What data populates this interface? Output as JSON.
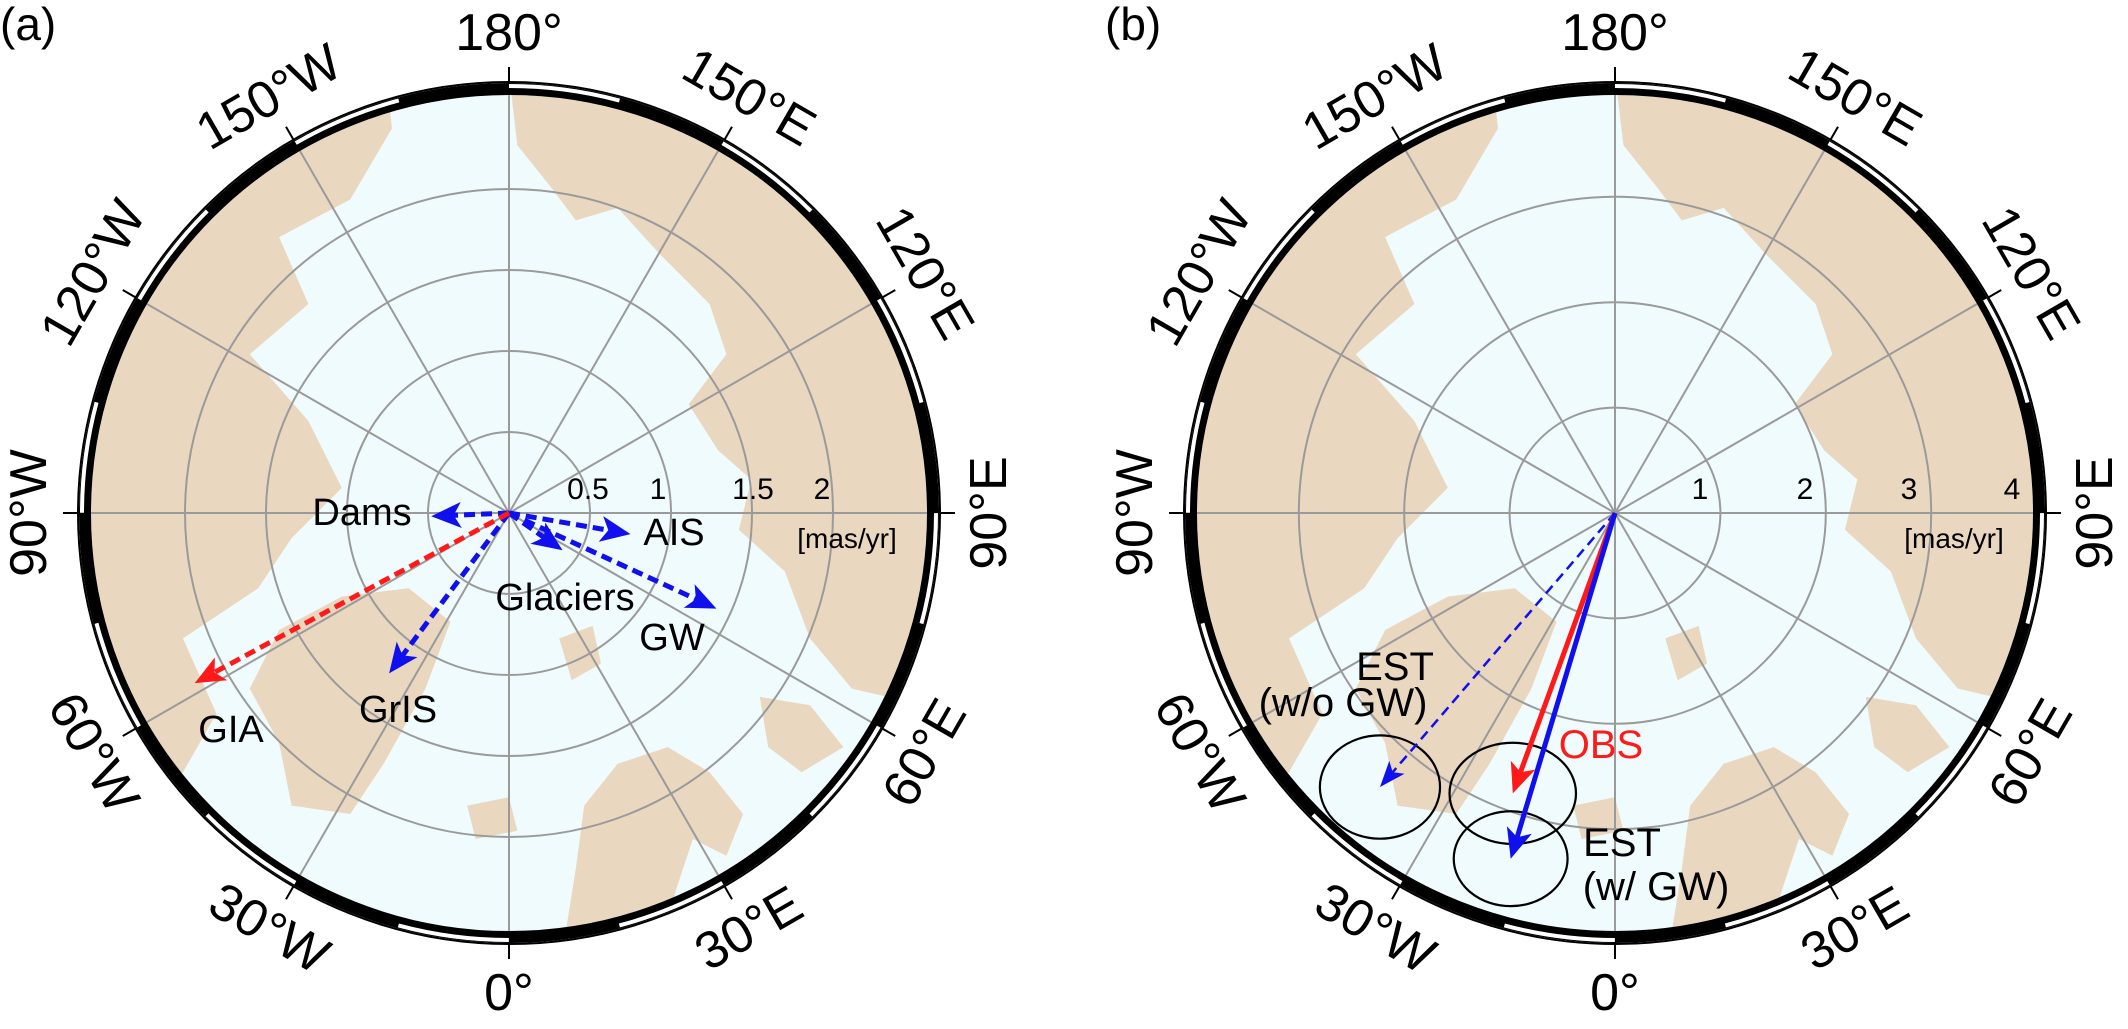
{
  "colors": {
    "ocean": "#effbfc",
    "land": "#ead7c0",
    "grid": "#9a9a9a",
    "red": "#ff1a1a",
    "blue": "#1010ee",
    "frame": "#000000"
  },
  "chart_data": [
    {
      "type": "vector",
      "panel_label": "(a)",
      "projection": "north polar stereographic",
      "meridian_labels": [
        "180°",
        "150°E",
        "120°E",
        "90°E",
        "60°E",
        "30°E",
        "0°",
        "30°W",
        "60°W",
        "90°W",
        "120°W",
        "150°W"
      ],
      "ring_values": [
        0.5,
        1,
        1.5,
        2
      ],
      "ring_labels": [
        "0.5",
        "1",
        "1.5",
        "2"
      ],
      "unit": "[mas/yr]",
      "rlim": [
        0,
        2.55
      ],
      "vectors": [
        {
          "name": "Dams",
          "dx": -0.48,
          "dy": -0.02,
          "color": "#1010ee",
          "style": "dashed"
        },
        {
          "name": "AIS",
          "dx": 0.75,
          "dy": -0.13,
          "color": "#1010ee",
          "style": "dashed"
        },
        {
          "name": "Glaciers",
          "dx": 0.33,
          "dy": -0.23,
          "color": "#1010ee",
          "style": "dashed"
        },
        {
          "name": "GW",
          "dx": 1.28,
          "dy": -0.59,
          "color": "#1010ee",
          "style": "dashed"
        },
        {
          "name": "GrIS",
          "dx": -0.74,
          "dy": -0.99,
          "color": "#1010ee",
          "style": "dashed"
        },
        {
          "name": "GIA",
          "dx": -1.94,
          "dy": -1.05,
          "color": "#ff1a1a",
          "style": "dashed"
        }
      ]
    },
    {
      "type": "vector",
      "panel_label": "(b)",
      "projection": "north polar stereographic",
      "meridian_labels": [
        "180°",
        "150°E",
        "120°E",
        "90°E",
        "60°E",
        "30°E",
        "0°",
        "30°W",
        "60°W",
        "90°W",
        "120°W",
        "150°W"
      ],
      "ring_values": [
        1,
        2,
        3,
        4
      ],
      "ring_labels": [
        "1",
        "2",
        "3",
        "4"
      ],
      "unit": "[mas/yr]",
      "rlim": [
        0,
        4.0
      ],
      "vectors": [
        {
          "name": "EST (w/o GW)",
          "label_lines": [
            "EST",
            "(w/o GW)"
          ],
          "dx": -2.23,
          "dy": -2.6,
          "color": "#1010ee",
          "style": "thin-dashed",
          "error_ellipse": {
            "a": 0.57,
            "b": 0.49
          }
        },
        {
          "name": "OBS",
          "label_lines": [
            "OBS"
          ],
          "dx": -0.97,
          "dy": -2.66,
          "color": "#ff1a1a",
          "style": "solid",
          "error_ellipse": {
            "a": 0.6,
            "b": 0.48
          }
        },
        {
          "name": "EST (w/ GW)",
          "label_lines": [
            "EST",
            "(w/ GW)"
          ],
          "dx": -0.99,
          "dy": -3.28,
          "color": "#1010ee",
          "style": "solid",
          "error_ellipse": {
            "a": 0.54,
            "b": 0.45
          }
        }
      ]
    }
  ]
}
